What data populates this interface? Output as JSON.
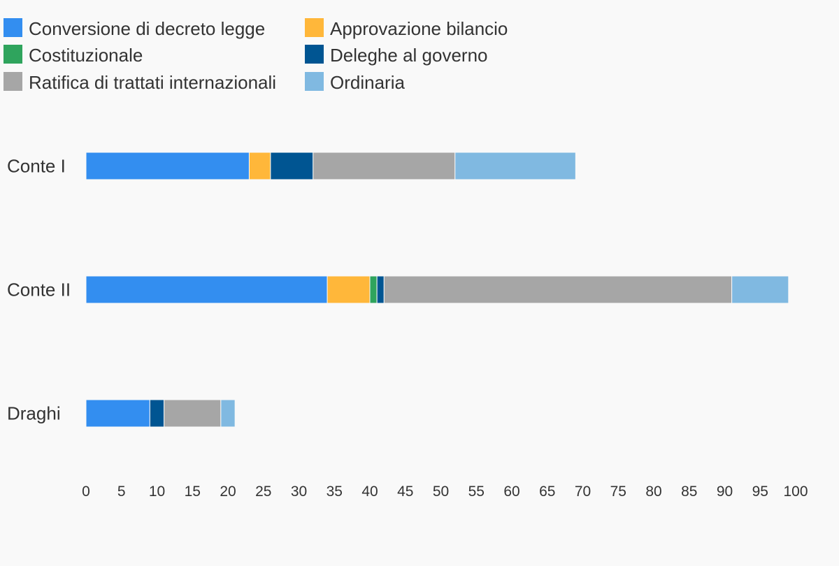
{
  "chart_data": {
    "type": "bar",
    "orientation": "horizontal",
    "stacked": true,
    "title": "",
    "xlabel": "",
    "ylabel": "",
    "categories": [
      "Conte I",
      "Conte II",
      "Draghi"
    ],
    "series": [
      {
        "name": "Conversione di decreto legge",
        "color": "#338ef0",
        "values": [
          23,
          34,
          9
        ]
      },
      {
        "name": "Approvazione bilancio",
        "color": "#ffb73a",
        "values": [
          3,
          6,
          0
        ]
      },
      {
        "name": "Costituzionale",
        "color": "#2fa45d",
        "values": [
          0,
          1,
          0
        ]
      },
      {
        "name": "Deleghe al governo",
        "color": "#005592",
        "values": [
          6,
          1,
          2
        ]
      },
      {
        "name": "Ratifica di trattati internazionali",
        "color": "#a6a6a6",
        "values": [
          20,
          49,
          8
        ]
      },
      {
        "name": "Ordinaria",
        "color": "#80b9e1",
        "values": [
          17,
          8,
          2
        ]
      }
    ],
    "xlim": [
      0,
      100
    ],
    "xticks": [
      0,
      5,
      10,
      15,
      20,
      25,
      30,
      35,
      40,
      45,
      50,
      55,
      60,
      65,
      70,
      75,
      80,
      85,
      90,
      95,
      100
    ],
    "grid": false,
    "legend_position": "top-left"
  }
}
